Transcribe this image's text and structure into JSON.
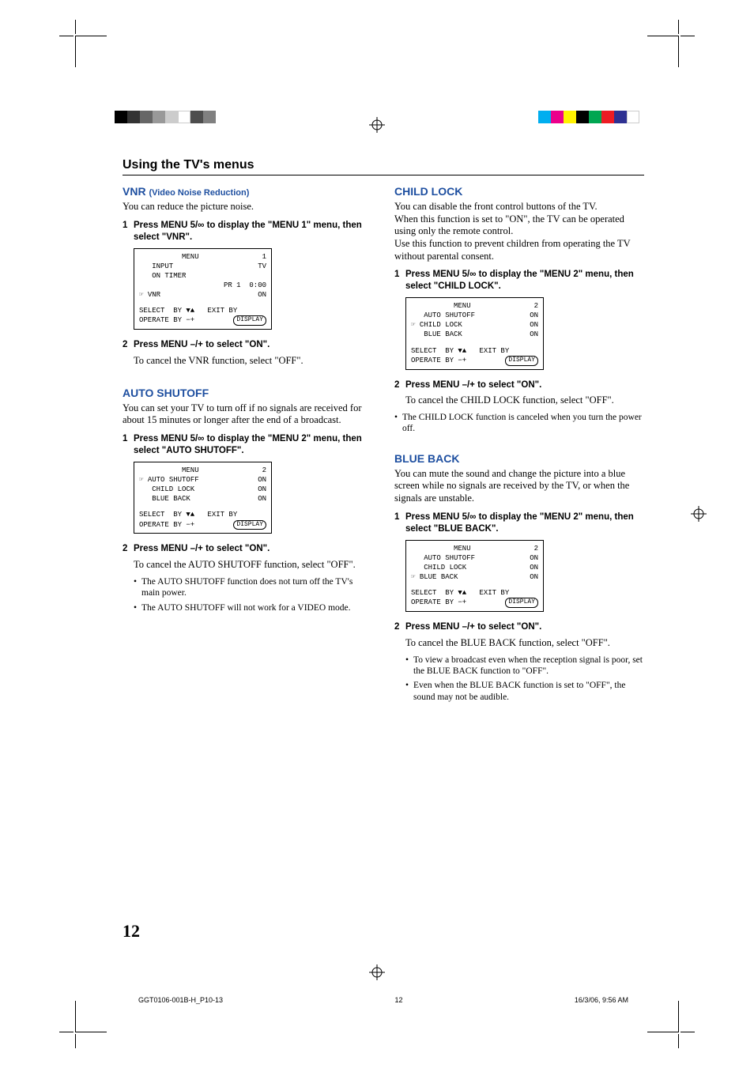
{
  "print": {
    "colors_left": [
      "#000000",
      "#333333",
      "#666666",
      "#999999",
      "#cccccc",
      "#ffffff",
      "#4d4d4d",
      "#808080"
    ],
    "colors_right": [
      "#00aeef",
      "#ec008c",
      "#fff200",
      "#000000",
      "#00a651",
      "#ed1c24",
      "#2e3192",
      "#ffffff"
    ]
  },
  "section_title": "Using the TV's menus",
  "left": {
    "vnr": {
      "heading": "VNR",
      "sub": "(Video Noise Reduction)",
      "intro": "You can reduce the picture noise.",
      "step1": "Press MENU 5/∞ to display the \"MENU 1\" menu, then select \"VNR\".",
      "step2": "Press MENU –/+ to select \"ON\".",
      "cancel": "To cancel the VNR function, select \"OFF\".",
      "osd": {
        "title": "MENU",
        "num": "1",
        "rows": [
          [
            "  INPUT",
            "TV"
          ],
          [
            "  ON TIMER",
            ""
          ],
          [
            "",
            "PR 1  0:00"
          ],
          [
            " VNR",
            "ON"
          ]
        ],
        "footer1": "SELECT  BY ▼▲   EXIT BY",
        "footer2l": "OPERATE BY −+",
        "footer2r": "DISPLAY"
      }
    },
    "auto": {
      "heading": "AUTO SHUTOFF",
      "intro": "You can set your TV to turn off if no signals are received for about 15 minutes or longer after the end of a broadcast.",
      "step1": "Press MENU 5/∞ to display the \"MENU 2\" menu, then select \"AUTO SHUTOFF\".",
      "step2": "Press MENU –/+ to select \"ON\".",
      "cancel": "To cancel the AUTO SHUTOFF function, select \"OFF\".",
      "bullets": [
        "The AUTO SHUTOFF function does not turn off the TV's main power.",
        "The AUTO SHUTOFF will not work for a VIDEO mode."
      ],
      "osd": {
        "title": "MENU",
        "num": "2",
        "rows": [
          [
            " AUTO SHUTOFF",
            "ON"
          ],
          [
            "  CHILD LOCK",
            "ON"
          ],
          [
            "  BLUE BACK",
            "ON"
          ]
        ],
        "footer1": "SELECT  BY ▼▲   EXIT BY",
        "footer2l": "OPERATE BY −+",
        "footer2r": "DISPLAY"
      }
    }
  },
  "right": {
    "child": {
      "heading": "CHILD LOCK",
      "intro": "You can disable the front control buttons of the TV.\nWhen this function is set to \"ON\", the TV can be operated using only the remote control.\nUse this function to prevent children from operating the TV without parental consent.",
      "step1": "Press MENU 5/∞ to display the \"MENU 2\" menu, then select \"CHILD LOCK\".",
      "step2": "Press MENU –/+ to select \"ON\".",
      "cancel": "To cancel the CHILD LOCK function, select \"OFF\".",
      "bullets": [
        "The CHILD LOCK function is canceled when you turn the power off."
      ],
      "osd": {
        "title": "MENU",
        "num": "2",
        "rows": [
          [
            "  AUTO SHUTOFF",
            "ON"
          ],
          [
            " CHILD LOCK",
            "ON"
          ],
          [
            "  BLUE BACK",
            "ON"
          ]
        ],
        "footer1": "SELECT  BY ▼▲   EXIT BY",
        "footer2l": "OPERATE BY −+",
        "footer2r": "DISPLAY"
      }
    },
    "blue": {
      "heading": "BLUE BACK",
      "intro": "You can mute the sound and change the picture into a blue screen while no signals are received by the TV, or when the signals are unstable.",
      "step1": "Press MENU 5/∞ to display the \"MENU 2\" menu, then select \"BLUE BACK\".",
      "step2": "Press MENU –/+ to select \"ON\".",
      "cancel": "To cancel the BLUE BACK function, select \"OFF\".",
      "bullets": [
        "To view a broadcast even when the reception signal is poor, set the BLUE BACK function to \"OFF\".",
        "Even when the BLUE BACK function is set to \"OFF\", the sound may not be audible."
      ],
      "osd": {
        "title": "MENU",
        "num": "2",
        "rows": [
          [
            "  AUTO SHUTOFF",
            "ON"
          ],
          [
            "  CHILD LOCK",
            "ON"
          ],
          [
            " BLUE BACK",
            "ON"
          ]
        ],
        "footer1": "SELECT  BY ▼▲   EXIT BY",
        "footer2l": "OPERATE BY −+",
        "footer2r": "DISPLAY"
      }
    }
  },
  "page_number": "12",
  "footer": {
    "file": "GGT0106-001B-H_P10-13",
    "page": "12",
    "date": "16/3/06, 9:56 AM"
  }
}
